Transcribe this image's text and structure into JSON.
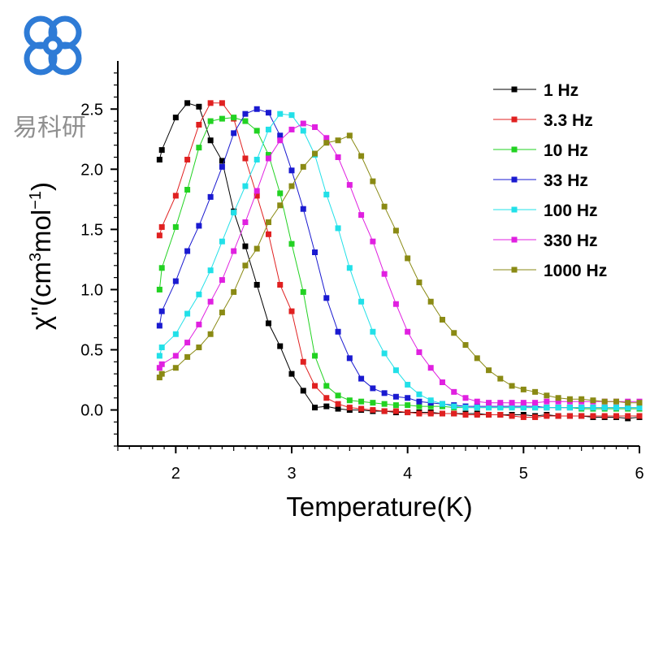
{
  "watermark": {
    "text": "易科研",
    "logo_icon": "logo-icon",
    "logo_color": "#2e7bd6",
    "text_color": "#8f8f8f"
  },
  "chart_data": {
    "type": "line",
    "title": "",
    "xlabel": "Temperature(K)",
    "ylabel_parts": {
      "prefix": "χ\"(cm",
      "sup1": "3",
      "middle": "mol",
      "sup2": "−1",
      "suffix": ")"
    },
    "xlim": [
      1.5,
      6
    ],
    "ylim": [
      -0.3,
      2.9
    ],
    "xticks": [
      "2",
      "3",
      "4",
      "5",
      "6"
    ],
    "yticks": [
      "0.0",
      "0.5",
      "1.0",
      "1.5",
      "2.0",
      "2.5"
    ],
    "grid": false,
    "legend": "top-right",
    "series": [
      {
        "name": "1 Hz",
        "color": "#000000",
        "x": [
          1.86,
          1.88,
          2.0,
          2.1,
          2.2,
          2.3,
          2.4,
          2.5,
          2.6,
          2.7,
          2.8,
          2.9,
          3.0,
          3.1,
          3.2,
          3.3,
          3.4,
          3.5,
          3.6,
          3.7,
          3.8,
          3.9,
          4.0,
          4.1,
          4.2,
          4.3,
          4.4,
          4.5,
          4.6,
          4.7,
          4.8,
          4.9,
          5.0,
          5.1,
          5.2,
          5.3,
          5.4,
          5.5,
          5.6,
          5.7,
          5.8,
          5.9,
          6.0
        ],
        "y": [
          2.08,
          2.16,
          2.43,
          2.55,
          2.52,
          2.24,
          2.07,
          1.65,
          1.36,
          1.04,
          0.72,
          0.53,
          0.3,
          0.16,
          0.02,
          0.03,
          0.01,
          0.0,
          0.0,
          -0.01,
          -0.01,
          -0.02,
          -0.02,
          -0.02,
          -0.02,
          -0.03,
          -0.03,
          -0.03,
          -0.03,
          -0.04,
          -0.04,
          -0.04,
          -0.04,
          -0.05,
          -0.04,
          -0.05,
          -0.05,
          -0.05,
          -0.06,
          -0.06,
          -0.06,
          -0.07,
          -0.06
        ]
      },
      {
        "name": "3.3 Hz",
        "color": "#e02020",
        "x": [
          1.86,
          1.88,
          2.0,
          2.1,
          2.2,
          2.3,
          2.4,
          2.5,
          2.6,
          2.7,
          2.8,
          2.9,
          3.0,
          3.1,
          3.2,
          3.3,
          3.4,
          3.5,
          3.6,
          3.7,
          3.8,
          3.9,
          4.0,
          4.1,
          4.2,
          4.3,
          4.4,
          4.5,
          4.6,
          4.7,
          4.8,
          4.9,
          5.0,
          5.1,
          5.2,
          5.3,
          5.4,
          5.5,
          5.6,
          5.7,
          5.8,
          5.9,
          6.0
        ],
        "y": [
          1.45,
          1.52,
          1.78,
          2.08,
          2.37,
          2.55,
          2.55,
          2.42,
          2.09,
          1.78,
          1.46,
          1.04,
          0.82,
          0.4,
          0.2,
          0.1,
          0.05,
          0.02,
          0.01,
          0.0,
          -0.01,
          -0.01,
          -0.02,
          -0.03,
          -0.03,
          -0.03,
          -0.03,
          -0.04,
          -0.04,
          -0.04,
          -0.04,
          -0.05,
          -0.06,
          -0.06,
          -0.05,
          -0.05,
          -0.05,
          -0.05,
          -0.05,
          -0.05,
          -0.05,
          -0.05,
          -0.05
        ]
      },
      {
        "name": "10 Hz",
        "color": "#22d222",
        "x": [
          1.86,
          1.88,
          2.0,
          2.1,
          2.2,
          2.3,
          2.4,
          2.5,
          2.6,
          2.7,
          2.8,
          2.9,
          3.0,
          3.1,
          3.2,
          3.3,
          3.4,
          3.5,
          3.6,
          3.7,
          3.8,
          3.9,
          4.0,
          4.1,
          4.2,
          4.3,
          4.4,
          4.5,
          4.6,
          4.7,
          4.8,
          4.9,
          5.0,
          5.1,
          5.2,
          5.3,
          5.4,
          5.5,
          5.6,
          5.7,
          5.8,
          5.9,
          6.0
        ],
        "y": [
          1.0,
          1.18,
          1.52,
          1.83,
          2.18,
          2.4,
          2.42,
          2.43,
          2.4,
          2.32,
          2.12,
          1.8,
          1.38,
          0.98,
          0.45,
          0.2,
          0.12,
          0.08,
          0.07,
          0.06,
          0.05,
          0.04,
          0.04,
          0.03,
          0.03,
          0.03,
          0.02,
          0.02,
          0.02,
          0.02,
          0.02,
          0.02,
          0.02,
          0.02,
          0.02,
          0.02,
          0.02,
          0.01,
          0.01,
          0.01,
          0.01,
          0.01,
          0.01
        ]
      },
      {
        "name": "33 Hz",
        "color": "#1a1ad0",
        "x": [
          1.86,
          1.88,
          2.0,
          2.1,
          2.2,
          2.3,
          2.4,
          2.5,
          2.6,
          2.7,
          2.8,
          2.9,
          3.0,
          3.1,
          3.2,
          3.3,
          3.4,
          3.5,
          3.6,
          3.7,
          3.8,
          3.9,
          4.0,
          4.1,
          4.2,
          4.3,
          4.4,
          4.5,
          4.6,
          4.7,
          4.8,
          4.9,
          5.0,
          5.1,
          5.2,
          5.3,
          5.4,
          5.5,
          5.6,
          5.7,
          5.8,
          5.9,
          6.0
        ],
        "y": [
          0.7,
          0.82,
          1.07,
          1.32,
          1.53,
          1.77,
          2.02,
          2.3,
          2.46,
          2.5,
          2.47,
          2.28,
          1.99,
          1.67,
          1.31,
          0.93,
          0.65,
          0.43,
          0.26,
          0.18,
          0.14,
          0.11,
          0.1,
          0.07,
          0.06,
          0.05,
          0.04,
          0.03,
          0.03,
          0.03,
          0.03,
          0.03,
          0.03,
          0.03,
          0.02,
          0.02,
          0.02,
          0.02,
          0.02,
          0.02,
          0.02,
          0.02,
          0.02
        ]
      },
      {
        "name": "100 Hz",
        "color": "#22e0e8",
        "x": [
          1.86,
          1.88,
          2.0,
          2.1,
          2.2,
          2.3,
          2.4,
          2.5,
          2.6,
          2.7,
          2.8,
          2.9,
          3.0,
          3.1,
          3.2,
          3.3,
          3.4,
          3.5,
          3.6,
          3.7,
          3.8,
          3.9,
          4.0,
          4.1,
          4.2,
          4.3,
          4.4,
          4.5,
          4.6,
          4.7,
          4.8,
          4.9,
          5.0,
          5.1,
          5.2,
          5.3,
          5.4,
          5.5,
          5.6,
          5.7,
          5.8,
          5.9,
          6.0
        ],
        "y": [
          0.45,
          0.52,
          0.63,
          0.8,
          0.96,
          1.16,
          1.4,
          1.64,
          1.86,
          2.08,
          2.33,
          2.46,
          2.45,
          2.32,
          2.12,
          1.79,
          1.51,
          1.18,
          0.9,
          0.65,
          0.47,
          0.33,
          0.21,
          0.13,
          0.08,
          0.05,
          0.03,
          0.02,
          0.02,
          0.02,
          0.02,
          0.02,
          0.02,
          0.02,
          0.02,
          0.02,
          0.02,
          0.02,
          0.02,
          0.02,
          0.02,
          0.02,
          0.02
        ]
      },
      {
        "name": "330 Hz",
        "color": "#e020e0",
        "x": [
          1.86,
          1.88,
          2.0,
          2.1,
          2.2,
          2.3,
          2.4,
          2.5,
          2.6,
          2.7,
          2.8,
          2.9,
          3.0,
          3.1,
          3.2,
          3.3,
          3.4,
          3.5,
          3.6,
          3.7,
          3.8,
          3.9,
          4.0,
          4.1,
          4.2,
          4.3,
          4.4,
          4.5,
          4.6,
          4.7,
          4.8,
          4.9,
          5.0,
          5.1,
          5.2,
          5.3,
          5.4,
          5.5,
          5.6,
          5.7,
          5.8,
          5.9,
          6.0
        ],
        "y": [
          0.35,
          0.38,
          0.45,
          0.56,
          0.71,
          0.9,
          1.08,
          1.32,
          1.56,
          1.82,
          2.09,
          2.24,
          2.33,
          2.38,
          2.35,
          2.26,
          2.1,
          1.87,
          1.62,
          1.4,
          1.13,
          0.88,
          0.65,
          0.48,
          0.35,
          0.23,
          0.15,
          0.1,
          0.07,
          0.06,
          0.06,
          0.06,
          0.06,
          0.06,
          0.07,
          0.07,
          0.07,
          0.07,
          0.07,
          0.07,
          0.07,
          0.07,
          0.07
        ]
      },
      {
        "name": "1000 Hz",
        "color": "#8a8a14",
        "x": [
          1.86,
          1.88,
          2.0,
          2.1,
          2.2,
          2.3,
          2.4,
          2.5,
          2.6,
          2.7,
          2.8,
          2.9,
          3.0,
          3.1,
          3.2,
          3.3,
          3.4,
          3.5,
          3.6,
          3.7,
          3.8,
          3.9,
          4.0,
          4.1,
          4.2,
          4.3,
          4.4,
          4.5,
          4.6,
          4.7,
          4.8,
          4.9,
          5.0,
          5.1,
          5.2,
          5.3,
          5.4,
          5.5,
          5.6,
          5.7,
          5.8,
          5.9,
          6.0
        ],
        "y": [
          0.27,
          0.3,
          0.35,
          0.44,
          0.52,
          0.63,
          0.81,
          0.98,
          1.2,
          1.34,
          1.56,
          1.7,
          1.86,
          2.02,
          2.13,
          2.22,
          2.24,
          2.28,
          2.11,
          1.9,
          1.69,
          1.49,
          1.26,
          1.06,
          0.9,
          0.75,
          0.64,
          0.54,
          0.43,
          0.33,
          0.26,
          0.2,
          0.17,
          0.15,
          0.12,
          0.1,
          0.09,
          0.09,
          0.08,
          0.07,
          0.07,
          0.06,
          0.06
        ]
      }
    ]
  }
}
